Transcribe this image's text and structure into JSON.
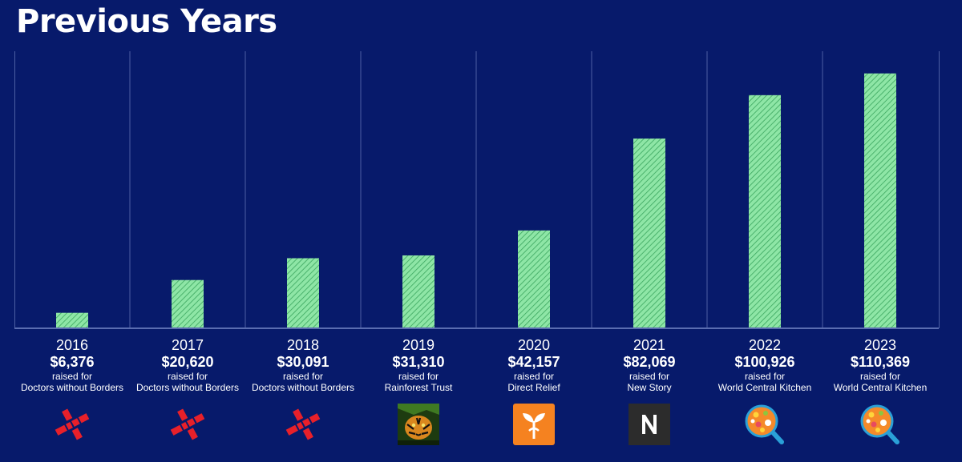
{
  "title": "Previous Years",
  "colors": {
    "background": "#071a6b",
    "bar_fill": "#8ee6a6",
    "bar_hatch": "#3aa55e",
    "gridline": "#4c5fa3"
  },
  "chart_data": {
    "type": "bar",
    "title": "Previous Years",
    "categories": [
      "2016",
      "2017",
      "2018",
      "2019",
      "2020",
      "2021",
      "2022",
      "2023"
    ],
    "values": [
      6376,
      20620,
      30091,
      31310,
      42157,
      82069,
      100926,
      110369
    ],
    "ylim": [
      0,
      120000
    ],
    "grid": "vertical separators",
    "legend": "none"
  },
  "columns": [
    {
      "year": "2016",
      "amount": "$6,376",
      "raised": "raised for",
      "charity": "Doctors without Borders",
      "logo_icon": "msf-logo-icon"
    },
    {
      "year": "2017",
      "amount": "$20,620",
      "raised": "raised for",
      "charity": "Doctors without Borders",
      "logo_icon": "msf-logo-icon"
    },
    {
      "year": "2018",
      "amount": "$30,091",
      "raised": "raised for",
      "charity": "Doctors without Borders",
      "logo_icon": "msf-logo-icon"
    },
    {
      "year": "2019",
      "amount": "$31,310",
      "raised": "raised for",
      "charity": "Rainforest Trust",
      "logo_icon": "rainforest-trust-logo-icon"
    },
    {
      "year": "2020",
      "amount": "$42,157",
      "raised": "raised for",
      "charity": "Direct Relief",
      "logo_icon": "direct-relief-logo-icon"
    },
    {
      "year": "2021",
      "amount": "$82,069",
      "raised": "raised for",
      "charity": "New Story",
      "logo_icon": "new-story-logo-icon"
    },
    {
      "year": "2022",
      "amount": "$100,926",
      "raised": "raised for",
      "charity": "World Central Kitchen",
      "logo_icon": "world-central-kitchen-logo-icon"
    },
    {
      "year": "2023",
      "amount": "$110,369",
      "raised": "raised for",
      "charity": "World Central Kitchen",
      "logo_icon": "world-central-kitchen-logo-icon"
    }
  ]
}
